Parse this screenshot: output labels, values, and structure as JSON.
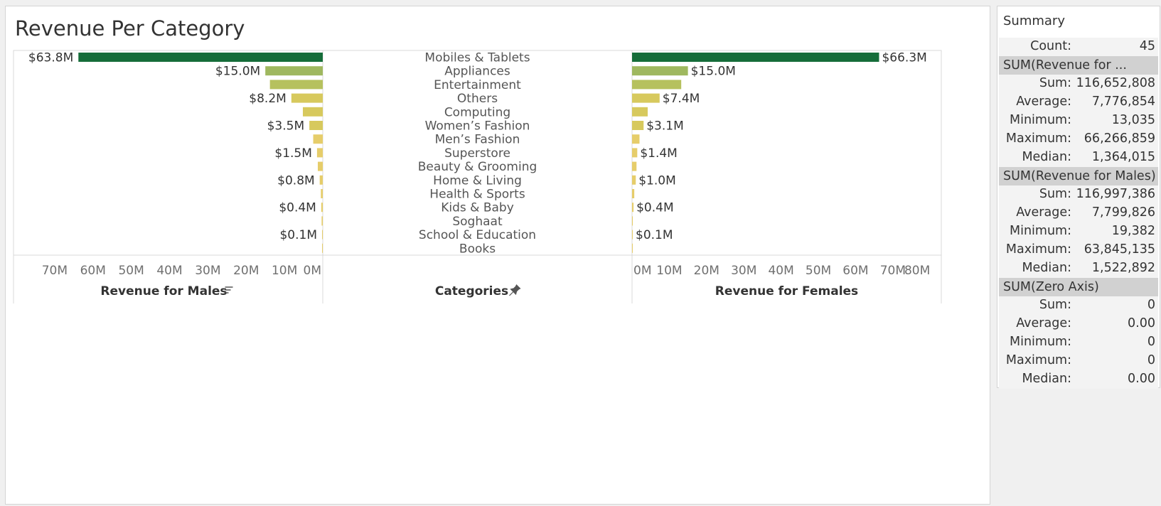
{
  "chart_data": {
    "type": "bar",
    "title": "Revenue Per Category",
    "categories": [
      "Mobiles & Tablets",
      "Appliances",
      "Entertainment",
      "Others",
      "Computing",
      "Women’s Fashion",
      "Men’s Fashion",
      "Superstore",
      "Beauty & Grooming",
      "Home & Living",
      "Health & Sports",
      "Kids & Baby",
      "Soghaat",
      "School & Education",
      "Books"
    ],
    "series": [
      {
        "name": "Revenue for Males",
        "values": [
          63.8,
          15.0,
          13.8,
          8.2,
          5.2,
          3.5,
          2.5,
          1.5,
          1.3,
          0.8,
          0.5,
          0.4,
          0.3,
          0.1,
          0.05
        ],
        "labels": [
          "$63.8M",
          "$15.0M",
          "",
          "$8.2M",
          "",
          "$3.5M",
          "",
          "$1.5M",
          "",
          "$0.8M",
          "",
          "$0.4M",
          "",
          "$0.1M",
          ""
        ]
      },
      {
        "name": "Revenue for Females",
        "values": [
          66.3,
          15.0,
          13.2,
          7.4,
          4.2,
          3.1,
          2.0,
          1.4,
          1.2,
          1.0,
          0.6,
          0.4,
          0.2,
          0.1,
          0.05
        ],
        "labels": [
          "$66.3M",
          "$15.0M",
          "",
          "$7.4M",
          "",
          "$3.1M",
          "",
          "$1.4M",
          "",
          "$1.0M",
          "",
          "$0.4M",
          "",
          "$0.1M",
          ""
        ]
      }
    ],
    "male_axis": {
      "xlim": [
        0,
        80
      ],
      "ticks": [
        "70M",
        "60M",
        "50M",
        "40M",
        "30M",
        "20M",
        "10M",
        "0M"
      ],
      "tick_values": [
        70,
        60,
        50,
        40,
        30,
        20,
        10,
        0
      ],
      "title": "Revenue for Males",
      "icon": "sort-icon"
    },
    "female_axis": {
      "xlim": [
        0,
        83
      ],
      "ticks": [
        "0M",
        "10M",
        "20M",
        "30M",
        "40M",
        "50M",
        "60M",
        "70M",
        "80M"
      ],
      "tick_values": [
        0,
        10,
        20,
        30,
        40,
        50,
        60,
        70,
        80
      ],
      "title": "Revenue for Females"
    },
    "category_axis": {
      "title": "Categories",
      "icon": "pin-icon"
    },
    "colors": {
      "scale": [
        "#e6cd6a",
        "#d7c95d",
        "#b6c15e",
        "#9fb85f",
        "#166d3a"
      ],
      "domain": [
        0,
        3,
        10,
        15,
        60
      ]
    }
  },
  "summary": {
    "title": "Summary",
    "count_label": "Count:",
    "count_value": "45",
    "groups": [
      {
        "header": "SUM(Revenue for ...",
        "rows": [
          {
            "label": "Sum:",
            "value": "116,652,808"
          },
          {
            "label": "Average:",
            "value": "7,776,854"
          },
          {
            "label": "Minimum:",
            "value": "13,035"
          },
          {
            "label": "Maximum:",
            "value": "66,266,859"
          },
          {
            "label": "Median:",
            "value": "1,364,015"
          }
        ]
      },
      {
        "header": "SUM(Revenue for Males)",
        "rows": [
          {
            "label": "Sum:",
            "value": "116,997,386"
          },
          {
            "label": "Average:",
            "value": "7,799,826"
          },
          {
            "label": "Minimum:",
            "value": "19,382"
          },
          {
            "label": "Maximum:",
            "value": "63,845,135"
          },
          {
            "label": "Median:",
            "value": "1,522,892"
          }
        ]
      },
      {
        "header": "SUM(Zero Axis)",
        "rows": [
          {
            "label": "Sum:",
            "value": "0"
          },
          {
            "label": "Average:",
            "value": "0.00"
          },
          {
            "label": "Minimum:",
            "value": "0"
          },
          {
            "label": "Maximum:",
            "value": "0"
          },
          {
            "label": "Median:",
            "value": "0.00"
          }
        ]
      }
    ]
  }
}
